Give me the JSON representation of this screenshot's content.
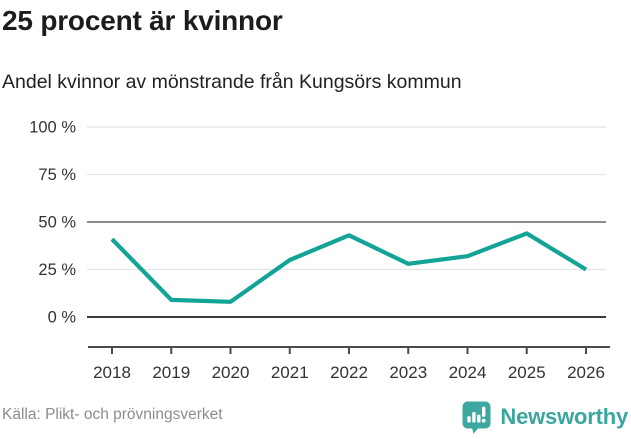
{
  "chart_data": {
    "type": "line",
    "title": "25 procent är kvinnor",
    "subtitle": "Andel kvinnor av mönstrande från Kungsörs kommun",
    "x": [
      "2018",
      "2019",
      "2020",
      "2021",
      "2022",
      "2023",
      "2024",
      "2025",
      "2026"
    ],
    "series": [
      {
        "name": "Andel kvinnor av mönstrande",
        "values": [
          41,
          9,
          8,
          30,
          43,
          28,
          32,
          44,
          25
        ]
      }
    ],
    "ylim": [
      0,
      100
    ],
    "yticks": [
      {
        "value": 0,
        "label": "0 %",
        "line": "dark"
      },
      {
        "value": 25,
        "label": "25 %",
        "line": "light"
      },
      {
        "value": 50,
        "label": "50 %",
        "line": "medium"
      },
      {
        "value": 75,
        "label": "75 %",
        "line": "light"
      },
      {
        "value": 100,
        "label": "100 %",
        "line": "light"
      }
    ],
    "grid": true,
    "legend_position": "none",
    "line_color": "#14a397",
    "unit": "%"
  },
  "footer": {
    "source": "Källa: Plikt- och prövningsverket",
    "brand": "Newsworthy",
    "brand_color": "#3aa69e"
  },
  "colors": {
    "grid_light": "#e4e4e4",
    "grid_medium": "#8c8c8c",
    "grid_dark": "#3a3a3a",
    "axis_spine": "#4a4a4a",
    "tick_label": "#333333"
  }
}
